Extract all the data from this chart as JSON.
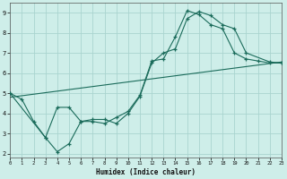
{
  "xlabel": "Humidex (Indice chaleur)",
  "background_color": "#ceeee9",
  "grid_color": "#aad4cf",
  "line_color": "#1a6b5a",
  "xlim": [
    0,
    23
  ],
  "ylim": [
    1.8,
    9.5
  ],
  "xticks": [
    0,
    1,
    2,
    3,
    4,
    5,
    6,
    7,
    8,
    9,
    10,
    11,
    12,
    13,
    14,
    15,
    16,
    17,
    18,
    19,
    20,
    21,
    22,
    23
  ],
  "yticks": [
    2,
    3,
    4,
    5,
    6,
    7,
    8,
    9
  ],
  "curve1_x": [
    0,
    1,
    2,
    3,
    4,
    5,
    6,
    7,
    8,
    9,
    10,
    11,
    12,
    13,
    14,
    15,
    16,
    17,
    18,
    19,
    20,
    21,
    22,
    23
  ],
  "curve1_y": [
    5.0,
    4.7,
    3.6,
    2.8,
    2.1,
    2.5,
    3.6,
    3.6,
    3.5,
    3.8,
    4.1,
    4.9,
    6.6,
    6.7,
    7.8,
    9.1,
    8.9,
    8.4,
    8.2,
    7.0,
    6.7,
    6.6,
    6.5,
    6.5
  ],
  "curve2_x": [
    0,
    3,
    4,
    5,
    6,
    7,
    8,
    9,
    10,
    11,
    12,
    13,
    14,
    15,
    16,
    17,
    18,
    19,
    20,
    22,
    23
  ],
  "curve2_y": [
    5.0,
    2.8,
    4.3,
    4.3,
    3.6,
    3.7,
    3.7,
    3.5,
    4.0,
    4.85,
    6.5,
    7.0,
    7.2,
    8.7,
    9.05,
    8.85,
    8.4,
    8.2,
    7.0,
    6.55,
    6.5
  ],
  "trend_x": [
    0,
    23
  ],
  "trend_y": [
    4.8,
    6.55
  ]
}
